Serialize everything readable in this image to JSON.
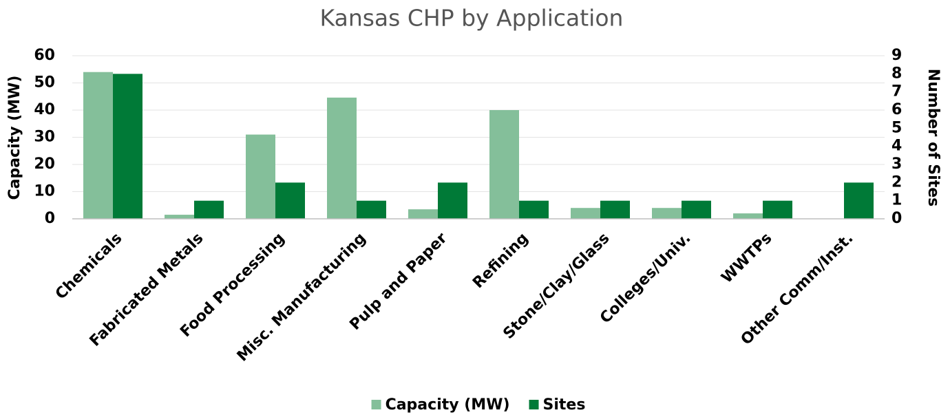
{
  "chart_data": {
    "type": "bar",
    "title": "Kansas CHP by Application",
    "categories": [
      "Chemicals",
      "Fabricated Metals",
      "Food Processing",
      "Misc. Manufacturing",
      "Pulp and Paper",
      "Refining",
      "Stone/Clay/Glass",
      "Colleges/Univ.",
      "WWTPs",
      "Other Comm/Inst."
    ],
    "series": [
      {
        "name": "Capacity (MW)",
        "color": "#84bf9a",
        "values": [
          54,
          1.5,
          31,
          44.6,
          3.5,
          40,
          4,
          4,
          2,
          0
        ]
      },
      {
        "name": "Sites",
        "color": "#007a37",
        "axis": "y2",
        "values": [
          8,
          1,
          2,
          1,
          2,
          1,
          1,
          1,
          1,
          2
        ]
      }
    ],
    "ylabel": "Capacity (MW)",
    "y2label": "Number of Sites",
    "ylim": [
      0,
      60
    ],
    "yticks": [
      0,
      10,
      20,
      30,
      40,
      50,
      60
    ],
    "y2lim": [
      0,
      9
    ],
    "y2ticks": [
      0,
      1,
      2,
      3,
      4,
      5,
      6,
      7,
      8,
      9
    ],
    "grid": true,
    "legend": "bottom"
  }
}
